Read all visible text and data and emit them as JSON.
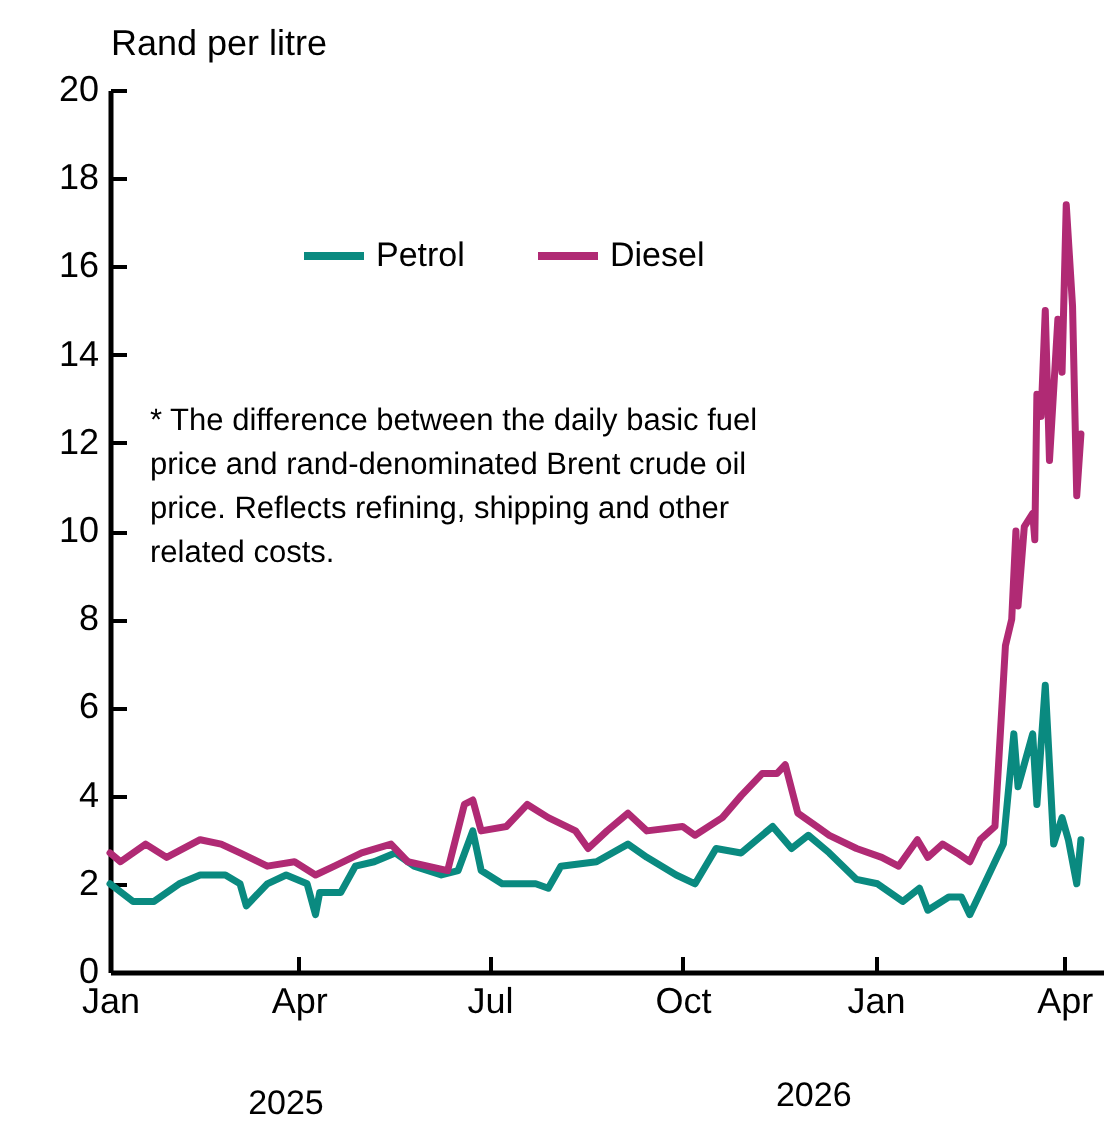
{
  "chart_data": {
    "type": "line",
    "ylabel": "Rand per litre",
    "annotations": [
      "* The difference between the daily basic fuel price and rand-denominated Brent crude oil price. Reflects refining, shipping and other related costs.",
      "2025",
      "2026"
    ],
    "xlim": [
      "2025-01-01",
      "2026-04-20"
    ],
    "xticks": [
      {
        "value": "2025-01-01",
        "label": "Jan"
      },
      {
        "value": "2025-04-01",
        "label": "Apr"
      },
      {
        "value": "2025-07-01",
        "label": "Jul"
      },
      {
        "value": "2025-10-01",
        "label": "Oct"
      },
      {
        "value": "2026-01-01",
        "label": "Jan"
      },
      {
        "value": "2026-04-01",
        "label": "Apr"
      }
    ],
    "ylim": [
      0,
      20
    ],
    "yticks": [
      0,
      2,
      4,
      6,
      8,
      10,
      12,
      14,
      16,
      18,
      20
    ],
    "grid": false,
    "legend": "top",
    "line_style": "solid",
    "series": [
      {
        "name": "Petrol",
        "color": "#0a8a80",
        "x": [
          "2025-01-01",
          "2025-01-12",
          "2025-01-22",
          "2025-02-03",
          "2025-02-13",
          "2025-02-25",
          "2025-03-04",
          "2025-03-07",
          "2025-03-17",
          "2025-03-26",
          "2025-04-05",
          "2025-04-09",
          "2025-04-11",
          "2025-04-21",
          "2025-04-28",
          "2025-05-07",
          "2025-05-17",
          "2025-05-26",
          "2025-06-08",
          "2025-06-16",
          "2025-06-23",
          "2025-06-27",
          "2025-07-07",
          "2025-07-23",
          "2025-07-29",
          "2025-08-04",
          "2025-08-21",
          "2025-09-05",
          "2025-09-14",
          "2025-09-28",
          "2025-10-07",
          "2025-10-17",
          "2025-10-29",
          "2025-11-13",
          "2025-11-22",
          "2025-11-30",
          "2025-12-10",
          "2025-12-23",
          "2026-01-02",
          "2026-01-14",
          "2026-01-22",
          "2026-01-26",
          "2026-02-05",
          "2026-02-11",
          "2026-02-15",
          "2026-02-23",
          "2026-03-03",
          "2026-03-08",
          "2026-03-10",
          "2026-03-17",
          "2026-03-19",
          "2026-03-23",
          "2026-03-27",
          "2026-03-31",
          "2026-04-03",
          "2026-04-07",
          "2026-04-09"
        ],
        "values": [
          2.0,
          1.6,
          1.6,
          2.0,
          2.2,
          2.2,
          2.0,
          1.5,
          2.0,
          2.2,
          2.0,
          1.3,
          1.8,
          1.8,
          2.4,
          2.5,
          2.7,
          2.4,
          2.2,
          2.3,
          3.2,
          2.3,
          2.0,
          2.0,
          1.9,
          2.4,
          2.5,
          2.9,
          2.6,
          2.2,
          2.0,
          2.8,
          2.7,
          3.3,
          2.8,
          3.1,
          2.7,
          2.1,
          2.0,
          1.6,
          1.9,
          1.4,
          1.7,
          1.7,
          1.3,
          2.1,
          2.9,
          5.4,
          4.2,
          5.4,
          3.8,
          6.5,
          2.9,
          3.5,
          3.0,
          2.0,
          3.0
        ]
      },
      {
        "name": "Diesel",
        "color": "#b02a74",
        "x": [
          "2025-01-01",
          "2025-01-06",
          "2025-01-18",
          "2025-01-28",
          "2025-02-13",
          "2025-02-23",
          "2025-03-04",
          "2025-03-17",
          "2025-03-30",
          "2025-04-09",
          "2025-04-18",
          "2025-05-01",
          "2025-05-15",
          "2025-05-23",
          "2025-06-11",
          "2025-06-19",
          "2025-06-23",
          "2025-06-27",
          "2025-07-09",
          "2025-07-19",
          "2025-07-29",
          "2025-08-11",
          "2025-08-17",
          "2025-08-26",
          "2025-09-05",
          "2025-09-14",
          "2025-10-01",
          "2025-10-07",
          "2025-10-20",
          "2025-10-29",
          "2025-11-08",
          "2025-11-15",
          "2025-11-19",
          "2025-11-25",
          "2025-12-04",
          "2025-12-10",
          "2025-12-23",
          "2026-01-04",
          "2026-01-12",
          "2026-01-21",
          "2026-01-26",
          "2026-02-02",
          "2026-02-09",
          "2026-02-15",
          "2026-02-20",
          "2026-02-27",
          "2026-03-04",
          "2026-03-07",
          "2026-03-09",
          "2026-03-10",
          "2026-03-13",
          "2026-03-17",
          "2026-03-18",
          "2026-03-19",
          "2026-03-21",
          "2026-03-23",
          "2026-03-25",
          "2026-03-29",
          "2026-03-31",
          "2026-04-02",
          "2026-04-05",
          "2026-04-07",
          "2026-04-09"
        ],
        "values": [
          2.7,
          2.5,
          2.9,
          2.6,
          3.0,
          2.9,
          2.7,
          2.4,
          2.5,
          2.2,
          2.4,
          2.7,
          2.9,
          2.5,
          2.3,
          3.8,
          3.9,
          3.2,
          3.3,
          3.8,
          3.5,
          3.2,
          2.8,
          3.2,
          3.6,
          3.2,
          3.3,
          3.1,
          3.5,
          4.0,
          4.5,
          4.5,
          4.7,
          3.6,
          3.3,
          3.1,
          2.8,
          2.6,
          2.4,
          3.0,
          2.6,
          2.9,
          2.7,
          2.5,
          3.0,
          3.3,
          7.4,
          8.0,
          10.0,
          8.3,
          10.1,
          10.4,
          9.8,
          13.1,
          12.6,
          15.0,
          11.6,
          14.8,
          13.6,
          17.4,
          15.1,
          10.8,
          12.2
        ]
      }
    ]
  }
}
